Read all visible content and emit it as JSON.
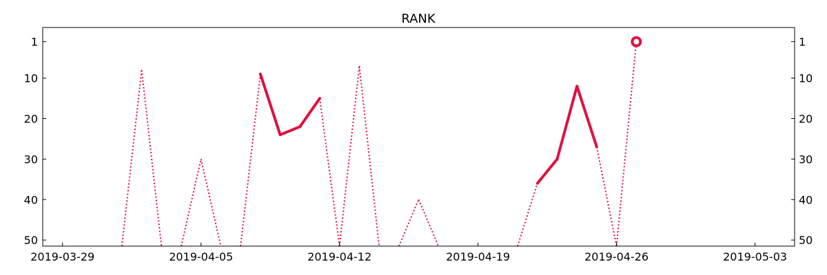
{
  "chart_data": {
    "type": "line",
    "title": "RANK",
    "xlabel": "",
    "ylabel": "",
    "y_inverted": true,
    "ylim": [
      51.5,
      -2.5
    ],
    "xlim": [
      "2019-03-28",
      "2019-05-05"
    ],
    "grid": false,
    "legend": "none",
    "x_ticks": [
      "2019-03-29",
      "2019-04-05",
      "2019-04-12",
      "2019-04-19",
      "2019-04-26",
      "2019-05-03"
    ],
    "y_ticks": [
      1,
      10,
      20,
      30,
      40,
      50
    ],
    "line_color": "#e0103f",
    "series": [
      {
        "x": [
          "2019-04-02",
          "2019-04-08",
          "2019-04-09",
          "2019-04-10",
          "2019-04-11",
          "2019-04-13",
          "2019-04-16",
          "2019-04-22",
          "2019-04-23",
          "2019-04-24",
          "2019-04-25",
          "2019-04-27"
        ],
        "values": [
          8,
          9,
          24,
          22,
          15,
          7,
          null,
          36,
          30,
          12,
          27,
          1
        ]
      },
      {
        "x": [
          "2019-04-05"
        ],
        "values": [
          30
        ]
      },
      {
        "x": [
          "2019-04-16"
        ],
        "values": [
          40
        ]
      }
    ],
    "last_point_marker": "open-circle"
  }
}
